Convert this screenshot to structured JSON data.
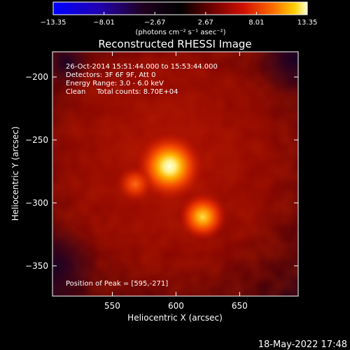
{
  "chart_data": {
    "type": "heatmap",
    "title": "Reconstructed RHESSI Image",
    "xlabel": "Heliocentric X (arcsec)",
    "ylabel": "Heliocentric Y (arcsec)",
    "xlim": [
      503,
      696
    ],
    "ylim": [
      -374,
      -180
    ],
    "x_ticks": [
      550,
      600,
      650
    ],
    "x_tick_labels": [
      "550",
      "600",
      "650"
    ],
    "y_ticks": [
      -200,
      -250,
      -300,
      -350
    ],
    "y_tick_labels": [
      "−200",
      "−250",
      "−300",
      "−350"
    ],
    "colorbar": {
      "range": [
        -13.35,
        13.35
      ],
      "ticks": [
        -13.35,
        -8.01,
        -2.67,
        2.67,
        8.01,
        13.35
      ],
      "tick_labels": [
        "−13.35",
        "−8.01",
        "−2.67",
        "2.67",
        "8.01",
        "13.35"
      ],
      "unit_label": "(photons cm⁻² s⁻¹ asec⁻²)"
    },
    "annotations": [
      "26-Oct-2014 15:51:44.000 to 15:53:44.000",
      "Detectors: 3F 6F 9F, Att 0",
      "Energy Range: 3.0 - 6.0 keV",
      "Clean     Total counts: 8.70E+04"
    ],
    "peak_label": "Position of Peak = [595,-271]",
    "sources": [
      {
        "x": 595,
        "y": -271,
        "value": 13.35
      },
      {
        "x": 621,
        "y": -311,
        "value": 9.5
      },
      {
        "x": 568,
        "y": -285,
        "value": 7.0
      }
    ],
    "background_level": 4.0
  },
  "footer_date": "18-May-2022 17:48"
}
